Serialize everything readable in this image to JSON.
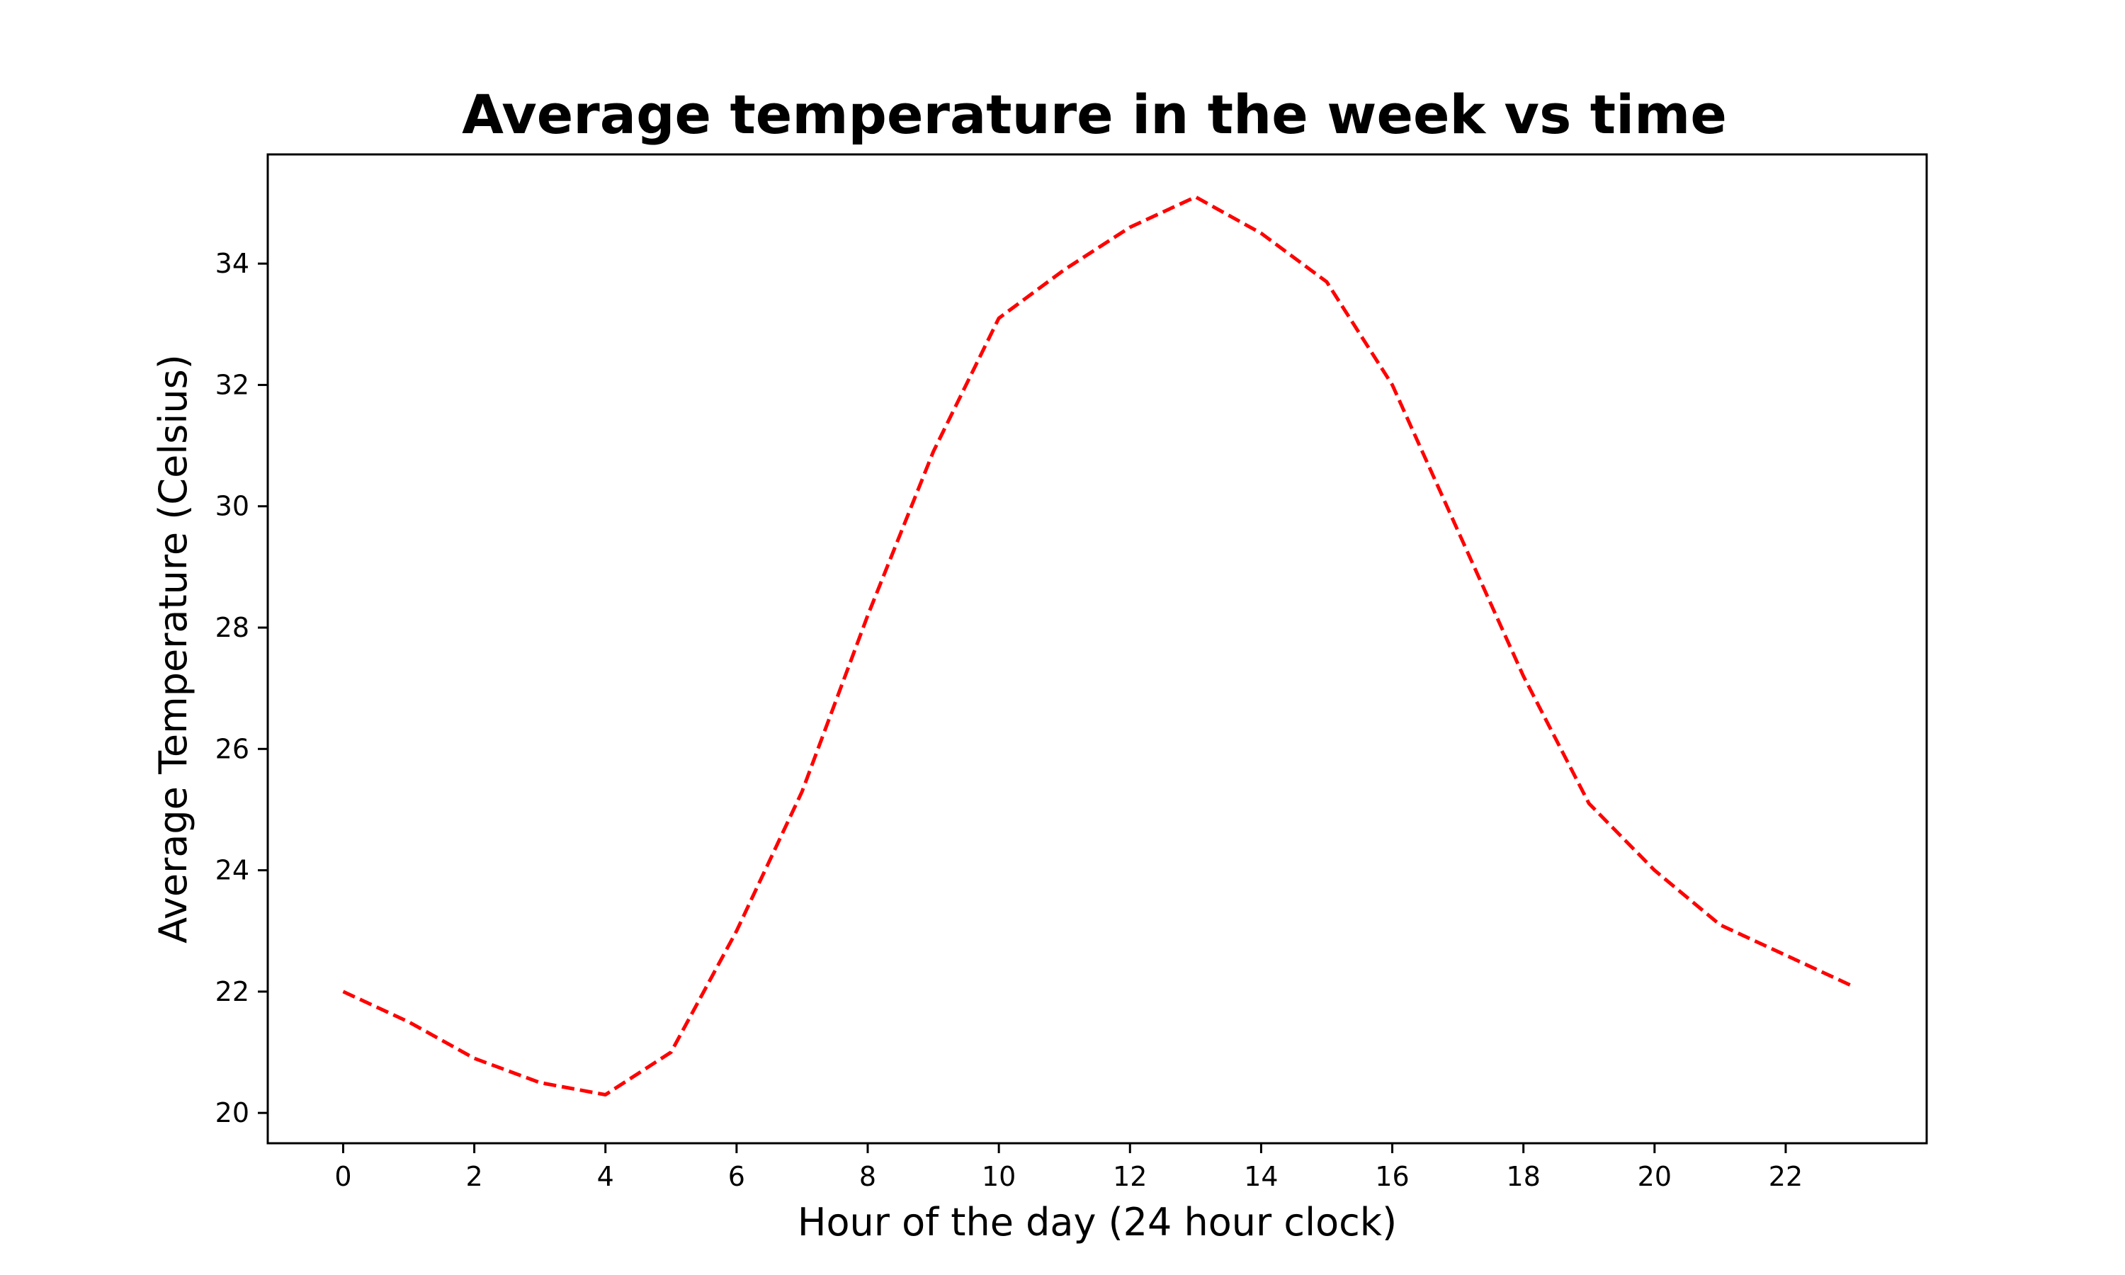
{
  "chart_data": {
    "type": "line",
    "title": "Average temperature in the week vs time",
    "xlabel": "Hour of the day (24 hour clock)",
    "ylabel": "Average Temperature (Celsius)",
    "xlim": [
      -1.15,
      24.15
    ],
    "ylim": [
      19.5,
      35.8
    ],
    "xticks": [
      0,
      2,
      4,
      6,
      8,
      10,
      12,
      14,
      16,
      18,
      20,
      22
    ],
    "yticks": [
      20,
      22,
      24,
      26,
      28,
      30,
      32,
      34
    ],
    "grid": false,
    "line_color": "#ff0000",
    "line_style": "dashed",
    "x": [
      0,
      1,
      2,
      3,
      4,
      5,
      6,
      7,
      8,
      9,
      10,
      11,
      12,
      13,
      14,
      15,
      16,
      17,
      18,
      19,
      20,
      21,
      22,
      23
    ],
    "series": [
      {
        "values": [
          22.0,
          21.5,
          20.9,
          20.5,
          20.3,
          21.0,
          23.0,
          25.3,
          28.2,
          30.9,
          33.1,
          33.9,
          34.6,
          35.1,
          34.5,
          33.7,
          32.0,
          29.6,
          27.2,
          25.1,
          24.0,
          23.1,
          22.6,
          22.1
        ]
      }
    ]
  }
}
